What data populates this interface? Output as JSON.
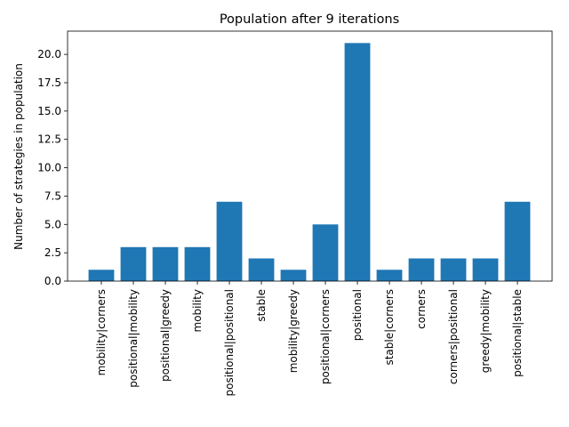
{
  "chart_data": {
    "type": "bar",
    "title": "Population after 9 iterations",
    "xlabel": "",
    "ylabel": "Number of strategies in population",
    "categories": [
      "mobility|corners",
      "positional|mobility",
      "positional|greedy",
      "mobility",
      "positional|positional",
      "stable",
      "mobility|greedy",
      "positional|corners",
      "positional",
      "stable|corners",
      "corners",
      "corners|positional",
      "greedy|mobility",
      "positional|stable"
    ],
    "values": [
      1,
      3,
      3,
      3,
      7,
      2,
      1,
      5,
      21,
      1,
      2,
      2,
      2,
      7
    ],
    "ylim": [
      0,
      22.05
    ],
    "yticks": [
      "0.0",
      "2.5",
      "5.0",
      "7.5",
      "10.0",
      "12.5",
      "15.0",
      "17.5",
      "20.0"
    ],
    "bar_color": "#1f77b4",
    "grid": false,
    "legend": "none"
  }
}
